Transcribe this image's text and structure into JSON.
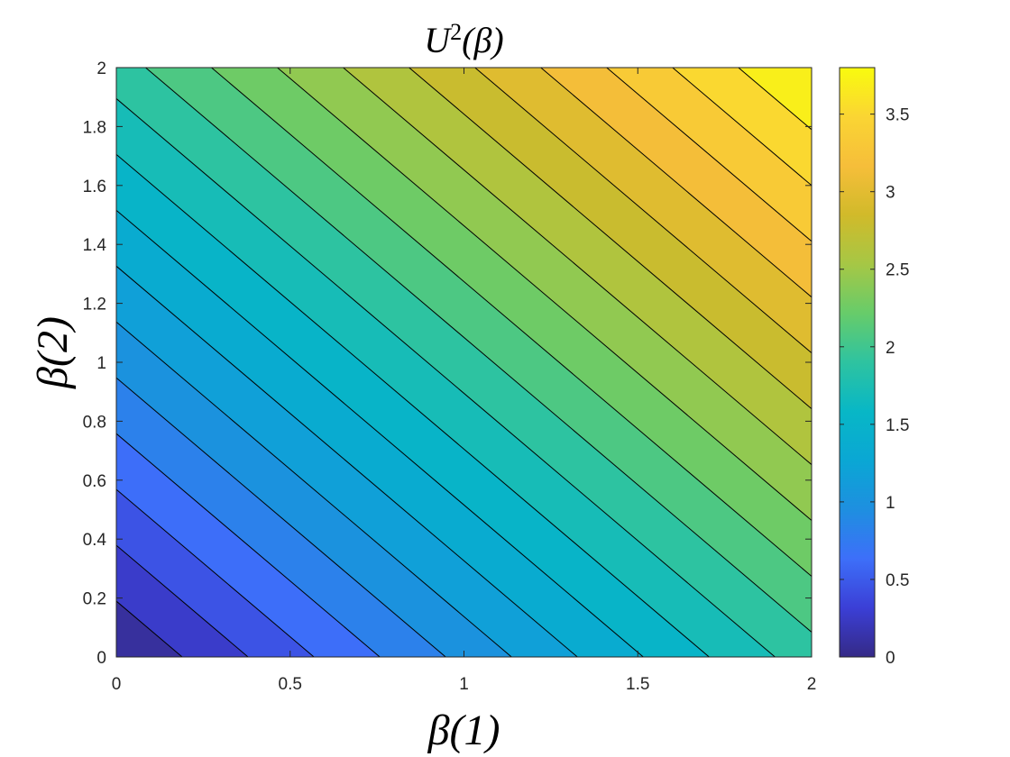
{
  "chart_data": {
    "type": "heatmap",
    "subtype": "filled-contour",
    "title": "U^2(β)",
    "title_parts": {
      "base": "U",
      "sup": "2",
      "rest": "(β)"
    },
    "xlabel": "β(1)",
    "ylabel": "β(2)",
    "xlim": [
      0,
      2
    ],
    "ylim": [
      0,
      2
    ],
    "x_ticks": [
      0,
      0.5,
      1,
      1.5,
      2
    ],
    "x_tick_labels": [
      "0",
      "0.5",
      "1",
      "1.5",
      "2"
    ],
    "y_ticks": [
      0,
      0.2,
      0.4,
      0.6,
      0.8,
      1,
      1.2,
      1.4,
      1.6,
      1.8,
      2
    ],
    "y_tick_labels": [
      "0",
      "0.2",
      "0.4",
      "0.6",
      "0.8",
      "1",
      "1.2",
      "1.4",
      "1.6",
      "1.8",
      "2"
    ],
    "function": "U = 0.95 * (beta1 + beta2)",
    "contour_levels": [
      0.18,
      0.36,
      0.54,
      0.72,
      0.9,
      1.08,
      1.26,
      1.44,
      1.62,
      1.8,
      1.98,
      2.16,
      2.34,
      2.52,
      2.7,
      2.88,
      3.06,
      3.24,
      3.42,
      3.6
    ],
    "contour_line_color": "#000000",
    "colormap": "parula",
    "colormap_stops": [
      "#352a87",
      "#3b3fd6",
      "#3d6ff9",
      "#1e8fe0",
      "#0aa7d4",
      "#08b7c6",
      "#2ec3a0",
      "#67cc6a",
      "#a6c745",
      "#d1ba2a",
      "#f6be3a",
      "#fad533",
      "#f9fb0e"
    ],
    "colorbar": {
      "range": [
        0,
        3.8
      ],
      "ticks": [
        0,
        0.5,
        1,
        1.5,
        2,
        2.5,
        3,
        3.5
      ],
      "tick_labels": [
        "0",
        "0.5",
        "1",
        "1.5",
        "2",
        "2.5",
        "3",
        "3.5"
      ]
    },
    "grid": false,
    "legend": "none"
  }
}
